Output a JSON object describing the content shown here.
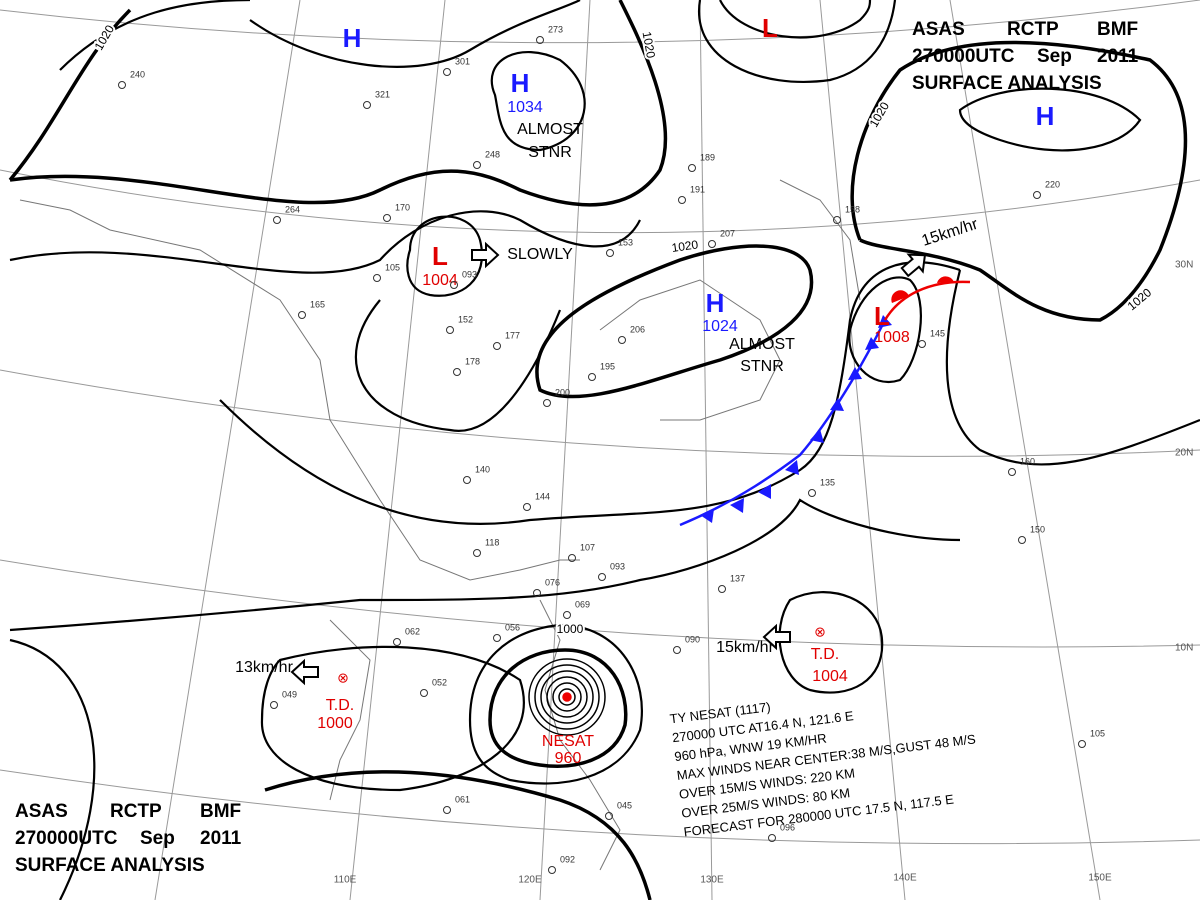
{
  "header": {
    "agency": [
      "ASAS",
      "RCTP",
      "BMF"
    ],
    "time": [
      "270000UTC",
      "Sep",
      "2011"
    ],
    "title": "SURFACE ANALYSIS"
  },
  "systems": [
    {
      "symbol": "H"
    },
    {
      "symbol": "H",
      "pressure": 1034,
      "motion": [
        "ALMOST",
        "STNR"
      ]
    },
    {
      "symbol": "L"
    },
    {
      "symbol": "H"
    },
    {
      "symbol": "L",
      "pressure": 1004,
      "motion": [
        "SLOWLY"
      ]
    },
    {
      "symbol": "H",
      "pressure": 1024,
      "motion": [
        "ALMOST",
        "STNR"
      ]
    },
    {
      "symbol": "L",
      "pressure": 1008,
      "motion": [
        "15km/hr"
      ]
    },
    {
      "symbol": "T.D.",
      "pressure": 1000,
      "motion": [
        "13km/hr"
      ]
    },
    {
      "symbol": "T.D.",
      "pressure": 1004,
      "motion": [
        "15km/hr"
      ]
    },
    {
      "symbol": "NESAT",
      "pressure": 960
    }
  ],
  "isobar_labels": [
    1020,
    1020,
    1020,
    1020,
    1020,
    1000
  ],
  "latitude_labels": [
    "30N",
    "20N",
    "10N"
  ],
  "longitude_labels": [
    "110E",
    "120E",
    "130E",
    "140E",
    "150E"
  ],
  "typhoon_info": [
    "TY NESAT (1117)",
    "270000 UTC AT16.4 N, 121.6 E",
    "960 hPa, WNW 19 KM/HR",
    "MAX WINDS NEAR CENTER:38 M/S,GUST 48 M/S",
    "OVER 15M/S WINDS: 220 KM",
    "OVER 25M/S WINDS: 80 KM",
    "FORECAST FOR 280000 UTC 17.5 N, 117.5 E"
  ],
  "stations": [
    "273",
    "301",
    "248",
    "170",
    "153",
    "105",
    "093",
    "152",
    "177",
    "178",
    "206",
    "195",
    "200",
    "140",
    "144",
    "118",
    "107",
    "093",
    "076",
    "069",
    "062",
    "056",
    "052",
    "049",
    "061",
    "045",
    "092",
    "096",
    "090",
    "137",
    "135",
    "160",
    "150",
    "105",
    "145",
    "220",
    "191",
    "189",
    "207",
    "158",
    "240",
    "321",
    "264",
    "165"
  ]
}
